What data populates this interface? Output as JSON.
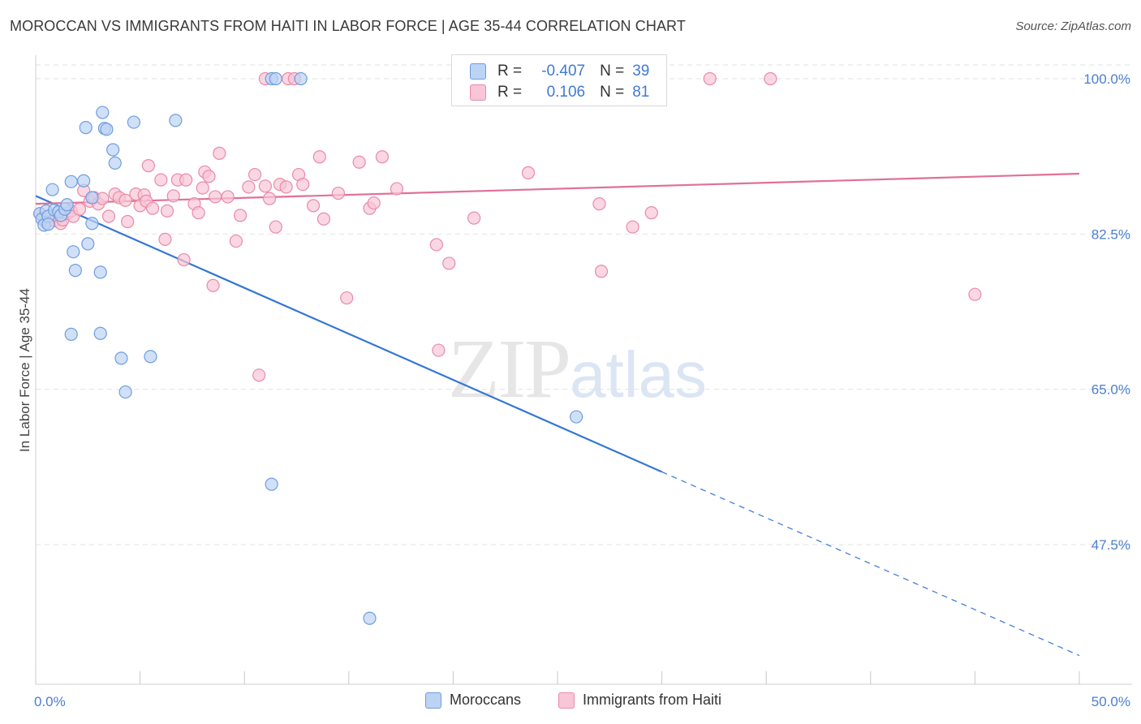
{
  "title": "MOROCCAN VS IMMIGRANTS FROM HAITI IN LABOR FORCE | AGE 35-44 CORRELATION CHART",
  "source": "Source: ZipAtlas.com",
  "watermark": {
    "zip": "ZIP",
    "atlas": "atlas"
  },
  "colors": {
    "blue_fill": "#bcd3f4",
    "blue_stroke": "#6e9de0",
    "blue_line": "#3476d4",
    "pink_fill": "#f8c6d6",
    "pink_stroke": "#e98aa8",
    "pink_line": "#e0709a",
    "tick_text": "#4a7fd0",
    "grid": "#e2e2e2"
  },
  "legend": {
    "rows": [
      {
        "r_label": "R =",
        "r_value": "-0.407",
        "n_label": "N =",
        "n_value": "39"
      },
      {
        "r_label": "R =",
        "r_value": "0.106",
        "n_label": "N =",
        "n_value": "81"
      }
    ]
  },
  "chart_data": {
    "type": "scatter",
    "title": "MOROCCAN VS IMMIGRANTS FROM HAITI IN LABOR FORCE | AGE 35-44 CORRELATION CHART",
    "xlabel": "",
    "ylabel": "In Labor Force | Age 35-44",
    "xlim": [
      0,
      50
    ],
    "ylim": [
      30,
      101.7
    ],
    "x_tick_labels": [
      {
        "value": 0,
        "label": "0.0%"
      },
      {
        "value": 50,
        "label": "50.0%"
      }
    ],
    "y_tick_labels": [
      {
        "value": 100,
        "label": "100.0%"
      },
      {
        "value": 82.5,
        "label": "82.5%"
      },
      {
        "value": 65,
        "label": "65.0%"
      },
      {
        "value": 47.5,
        "label": "47.5%"
      }
    ],
    "x_minor_ticks": [
      0,
      5,
      10,
      15,
      20,
      25,
      30,
      35,
      40,
      45,
      50
    ],
    "series": [
      {
        "name": "Moroccans",
        "color": "#6e9de0",
        "trend": {
          "x1": 0.0,
          "y1": 86.8,
          "x2": 30.0,
          "y2": 55.7,
          "dashed_to_x": 50.0,
          "dashed_to_y": 35.0
        },
        "points": [
          [
            0.2,
            84.8
          ],
          [
            0.3,
            84.2
          ],
          [
            0.4,
            83.5
          ],
          [
            0.5,
            85.1
          ],
          [
            0.6,
            84.5
          ],
          [
            0.8,
            87.5
          ],
          [
            0.9,
            85.2
          ],
          [
            1.1,
            85.0
          ],
          [
            1.2,
            84.6
          ],
          [
            1.4,
            85.3
          ],
          [
            1.5,
            85.8
          ],
          [
            1.7,
            88.4
          ],
          [
            1.8,
            80.5
          ],
          [
            1.9,
            78.4
          ],
          [
            1.7,
            71.2
          ],
          [
            2.3,
            88.5
          ],
          [
            2.4,
            94.5
          ],
          [
            2.5,
            81.4
          ],
          [
            2.7,
            83.7
          ],
          [
            2.7,
            86.6
          ],
          [
            3.1,
            78.2
          ],
          [
            3.1,
            71.3
          ],
          [
            3.2,
            96.2
          ],
          [
            3.3,
            94.4
          ],
          [
            3.4,
            94.3
          ],
          [
            3.7,
            92.0
          ],
          [
            3.8,
            90.5
          ],
          [
            4.1,
            68.5
          ],
          [
            4.3,
            64.7
          ],
          [
            4.7,
            95.1
          ],
          [
            5.5,
            68.7
          ],
          [
            6.7,
            95.3
          ],
          [
            11.3,
            100.0
          ],
          [
            11.5,
            100.0
          ],
          [
            12.7,
            100.0
          ],
          [
            11.3,
            54.3
          ],
          [
            16.0,
            39.2
          ],
          [
            25.9,
            61.9
          ],
          [
            0.6,
            83.6
          ]
        ]
      },
      {
        "name": "Immigrants from Haiti",
        "color": "#e98aa8",
        "trend": {
          "x1": 0.0,
          "y1": 85.9,
          "x2": 50.0,
          "y2": 89.3
        },
        "points": [
          [
            0.2,
            84.8
          ],
          [
            0.4,
            84.3
          ],
          [
            0.5,
            83.8
          ],
          [
            0.7,
            84.6
          ],
          [
            0.9,
            84.0
          ],
          [
            1.0,
            84.6
          ],
          [
            1.2,
            83.7
          ],
          [
            1.3,
            84.1
          ],
          [
            1.5,
            84.8
          ],
          [
            1.7,
            85.1
          ],
          [
            1.8,
            84.5
          ],
          [
            2.1,
            85.3
          ],
          [
            2.3,
            87.4
          ],
          [
            2.6,
            86.2
          ],
          [
            2.8,
            86.6
          ],
          [
            3.0,
            85.9
          ],
          [
            3.2,
            86.5
          ],
          [
            3.5,
            84.5
          ],
          [
            3.8,
            87.0
          ],
          [
            4.0,
            86.6
          ],
          [
            4.3,
            86.3
          ],
          [
            4.4,
            83.9
          ],
          [
            4.8,
            87.0
          ],
          [
            5.0,
            85.7
          ],
          [
            5.2,
            86.9
          ],
          [
            5.3,
            86.2
          ],
          [
            5.4,
            90.2
          ],
          [
            5.6,
            85.4
          ],
          [
            6.0,
            88.6
          ],
          [
            6.2,
            81.9
          ],
          [
            6.3,
            85.1
          ],
          [
            6.6,
            86.8
          ],
          [
            6.8,
            88.6
          ],
          [
            7.1,
            79.6
          ],
          [
            7.2,
            88.6
          ],
          [
            7.6,
            85.9
          ],
          [
            7.8,
            84.9
          ],
          [
            8.0,
            87.7
          ],
          [
            8.1,
            89.5
          ],
          [
            8.3,
            89.0
          ],
          [
            8.5,
            76.7
          ],
          [
            8.6,
            86.7
          ],
          [
            8.8,
            91.6
          ],
          [
            9.2,
            86.7
          ],
          [
            9.6,
            81.7
          ],
          [
            9.8,
            84.6
          ],
          [
            10.2,
            87.8
          ],
          [
            10.5,
            89.2
          ],
          [
            11.0,
            87.9
          ],
          [
            11.2,
            86.5
          ],
          [
            11.5,
            83.3
          ],
          [
            11.7,
            88.1
          ],
          [
            12.0,
            87.8
          ],
          [
            12.6,
            89.2
          ],
          [
            12.8,
            88.1
          ],
          [
            13.3,
            85.7
          ],
          [
            13.6,
            91.2
          ],
          [
            13.8,
            84.2
          ],
          [
            14.5,
            87.1
          ],
          [
            14.9,
            75.3
          ],
          [
            15.5,
            90.6
          ],
          [
            16.0,
            85.4
          ],
          [
            16.2,
            86.0
          ],
          [
            16.6,
            91.2
          ],
          [
            17.3,
            87.6
          ],
          [
            10.7,
            66.6
          ],
          [
            19.3,
            69.4
          ],
          [
            19.2,
            81.3
          ],
          [
            19.8,
            79.2
          ],
          [
            21.0,
            84.3
          ],
          [
            23.6,
            89.4
          ],
          [
            27.0,
            85.9
          ],
          [
            27.1,
            78.3
          ],
          [
            28.6,
            83.3
          ],
          [
            29.5,
            84.9
          ],
          [
            45.0,
            75.7
          ],
          [
            11.0,
            100.0
          ],
          [
            12.1,
            100.0
          ],
          [
            12.4,
            100.0
          ],
          [
            32.3,
            100.0
          ],
          [
            35.2,
            100.0
          ]
        ]
      }
    ]
  }
}
